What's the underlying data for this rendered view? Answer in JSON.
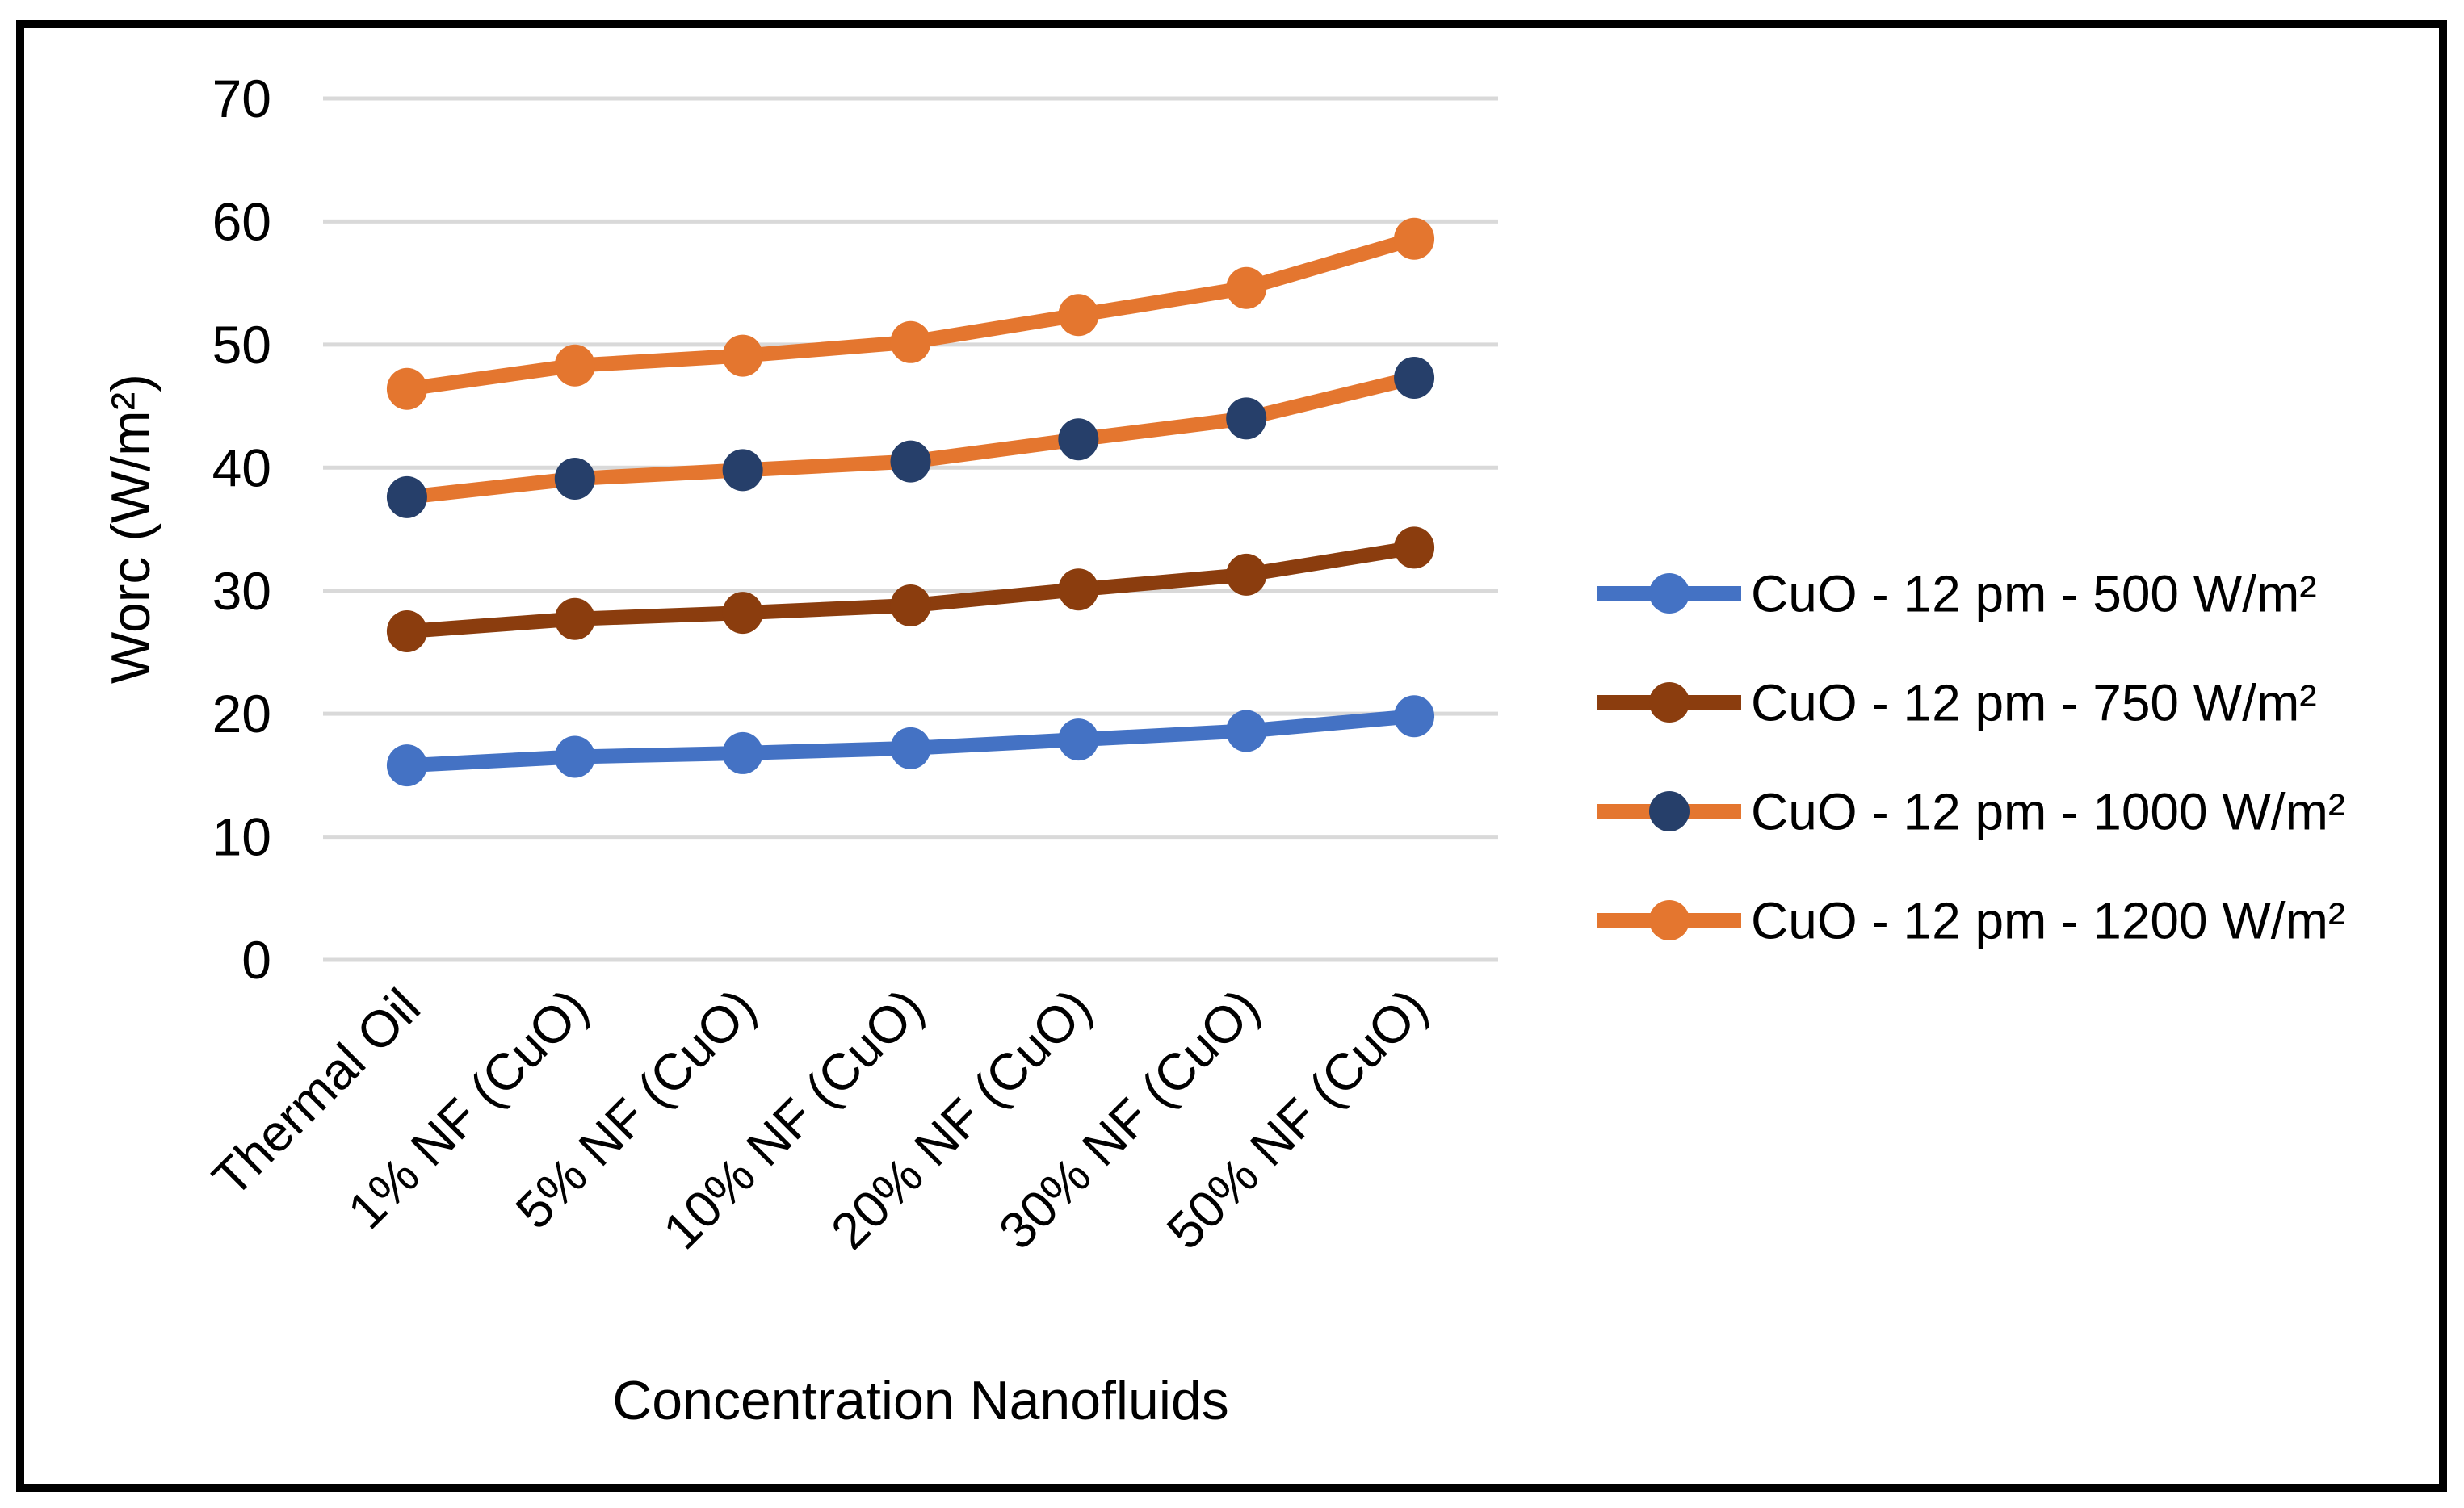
{
  "figure": {
    "background_color": "#FFFFFF",
    "frame_color": "#000000"
  },
  "chart_data": {
    "type": "line",
    "title": "",
    "xlabel": "Concentration Nanofluids",
    "ylabel": "Worc (W/m²)",
    "ylim": [
      0,
      70
    ],
    "yticks": [
      0,
      10,
      20,
      30,
      40,
      50,
      60,
      70
    ],
    "grid": true,
    "gridline_color": "#D9D9D9",
    "legend_position": "right",
    "categories": [
      "Thermal Oil",
      "1% NF (CuO)",
      "5% NF (CuO)",
      "10% NF (CuO)",
      "20% NF (CuO)",
      "30% NF (CuO)",
      "50% NF (CuO)"
    ],
    "series": [
      {
        "name": "CuO - 12 pm - 500 W/m²",
        "line_color": "#4472C4",
        "marker_color": "#4472C4",
        "values": [
          15.8,
          16.5,
          16.8,
          17.2,
          17.9,
          18.6,
          19.8
        ]
      },
      {
        "name": "CuO - 12 pm - 750 W/m²",
        "line_color": "#8B3D0E",
        "marker_color": "#8B3D0E",
        "values": [
          26.7,
          27.7,
          28.2,
          28.8,
          30.1,
          31.3,
          33.5
        ]
      },
      {
        "name": "CuO - 12 pm - 1000 W/m²",
        "line_color": "#E4762F",
        "marker_color": "#263F6A",
        "values": [
          37.6,
          39.1,
          39.8,
          40.5,
          42.3,
          44.0,
          47.3
        ]
      },
      {
        "name": "CuO - 12 pm - 1200 W/m²",
        "line_color": "#E4762F",
        "marker_color": "#E4762F",
        "values": [
          46.4,
          48.3,
          49.1,
          50.2,
          52.4,
          54.6,
          58.6
        ]
      }
    ]
  }
}
